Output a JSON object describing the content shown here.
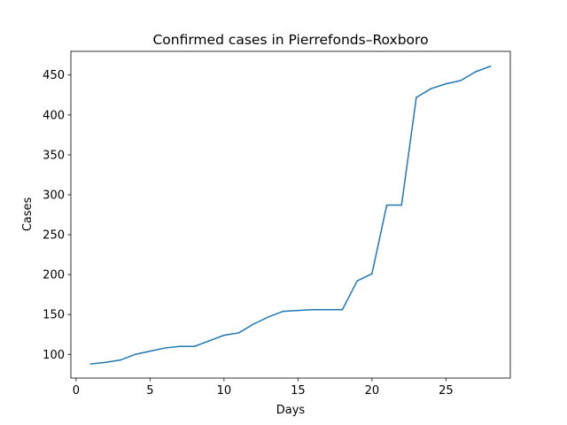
{
  "chart_data": {
    "type": "line",
    "title": "Confirmed cases in Pierrefonds–Roxboro",
    "xlabel": "Days",
    "ylabel": "Cases",
    "xlim": [
      -0.35,
      29.35
    ],
    "ylim": [
      70.35,
      479.65
    ],
    "x_ticks": [
      0,
      5,
      10,
      15,
      20,
      25
    ],
    "y_ticks": [
      100,
      150,
      200,
      250,
      300,
      350,
      400,
      450
    ],
    "grid": false,
    "series": [
      {
        "color": "#1f77b4",
        "x": [
          1,
          2,
          3,
          4,
          5,
          6,
          7,
          8,
          9,
          10,
          11,
          12,
          13,
          14,
          15,
          16,
          17,
          18,
          19,
          20,
          21,
          22,
          23,
          24,
          25,
          26,
          27,
          28
        ],
        "y": [
          88,
          90,
          93,
          100,
          104,
          108,
          110,
          110,
          117,
          124,
          127,
          138,
          147,
          154,
          155,
          156,
          156,
          156,
          192,
          201,
          287,
          287,
          422,
          433,
          439,
          443,
          454,
          461
        ]
      }
    ]
  }
}
